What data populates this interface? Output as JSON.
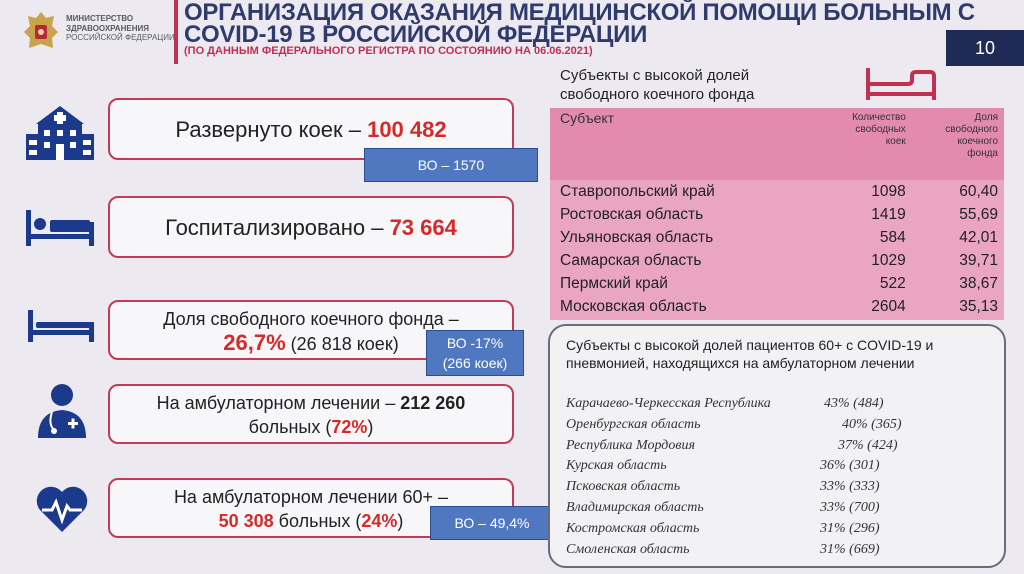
{
  "header": {
    "ministry_line1": "МИНИСТЕРСТВО",
    "ministry_line2": "ЗДРАВООХРАНЕНИЯ",
    "ministry_line3": "РОССИЙСКОЙ ФЕДЕРАЦИИ",
    "title_line1": "ОРГАНИЗАЦИЯ ОКАЗАНИЯ МЕДИЦИНСКОЙ ПОМОЩИ БОЛЬНЫМ С",
    "title_line2": "COVID-19 В РОССИЙСКОЙ ФЕДЕРАЦИИ",
    "subtitle": "(ПО ДАННЫМ ФЕДЕРАЛЬНОГО РЕГИСТРА ПО СОСТОЯНИЮ НА 06.06.2021)",
    "page_number": "10"
  },
  "stats": {
    "beds_label": "Развернуто коек – ",
    "beds_value": "100 482",
    "beds_tag": "ВО – 1570",
    "hosp_label": "Госпитализировано – ",
    "hosp_value": "73 664",
    "free_label": "Доля свободного коечного фонда –",
    "free_value": "26,7%",
    "free_detail": " (26 818 коек)",
    "free_tag_line1": "ВО -17%",
    "free_tag_line2": "(266 коек)",
    "amb_label": "На амбулаторном лечении – ",
    "amb_value": "212 260",
    "amb_line2a": "больных (",
    "amb_pct": "72%",
    "amb_line2b": ")",
    "amb60_label": "На амбулаторном лечении 60+ –",
    "amb60_value": "50 308",
    "amb60_mid": " больных (",
    "amb60_pct": "24%",
    "amb60_end": ")",
    "amb60_tag": "ВО – 49,4%"
  },
  "free_beds_table": {
    "heading_line1": "Субъекты с высокой долей",
    "heading_line2": "свободного коечного фонда",
    "col_subject": "Субъект",
    "col_count_1": "Количество",
    "col_count_2": "свободных",
    "col_count_3": "коек",
    "col_share_1": "Доля",
    "col_share_2": "свободного",
    "col_share_3": "коечного",
    "col_share_4": "фонда",
    "rows": [
      {
        "subject": "Ставропольский край",
        "count": "1098",
        "share": "60,40"
      },
      {
        "subject": "Ростовская область",
        "count": "1419",
        "share": "55,69"
      },
      {
        "subject": "Ульяновская область",
        "count": "584",
        "share": "42,01"
      },
      {
        "subject": "Самарская область",
        "count": "1029",
        "share": "39,71"
      },
      {
        "subject": "Пермский край",
        "count": "522",
        "share": "38,67"
      },
      {
        "subject": "Московская область",
        "count": "2604",
        "share": "35,13"
      }
    ]
  },
  "elderly_outpatient": {
    "title": "Субъекты с высокой долей пациентов 60+ с COVID-19 и пневмонией, находящихся на амбулаторном лечении",
    "rows": [
      {
        "region": "Карачаево-Черкесская Республика",
        "value": "43% (484)"
      },
      {
        "region": "Оренбургская область",
        "value": "40% (365)"
      },
      {
        "region": "Республика Мордовия",
        "value": "37% (424)"
      },
      {
        "region": "Курская область",
        "value": "36% (301)"
      },
      {
        "region": "Псковская область",
        "value": "33% (333)"
      },
      {
        "region": "Владимирская область",
        "value": "33% (700)"
      },
      {
        "region": "Костромская область",
        "value": "31% (296)"
      },
      {
        "region": "Смоленская область",
        "value": "31% (669)"
      }
    ]
  },
  "colors": {
    "accent_red": "#d62a2a",
    "frame": "#c23a56",
    "navy": "#1f2a55",
    "tag_blue": "#4f78c0",
    "table_pink": "#e9a5c3"
  }
}
